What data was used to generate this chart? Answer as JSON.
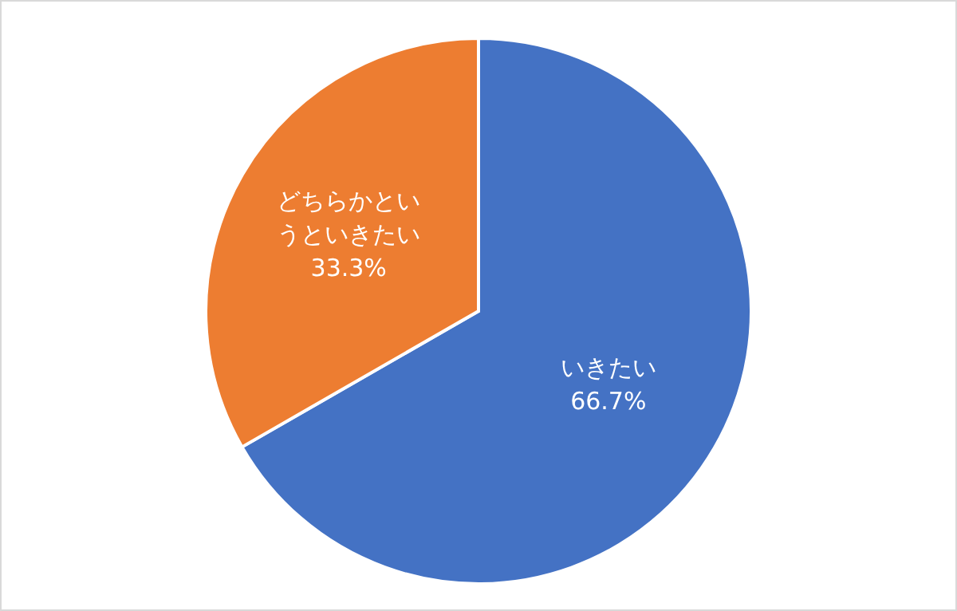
{
  "chart_data": {
    "type": "pie",
    "categories": [
      "いきたい",
      "どちらかというといきたい"
    ],
    "values": [
      66.7,
      33.3
    ],
    "colors": [
      "#4472c4",
      "#ed7d31"
    ],
    "value_labels": [
      "66.7%",
      "33.3%"
    ]
  }
}
